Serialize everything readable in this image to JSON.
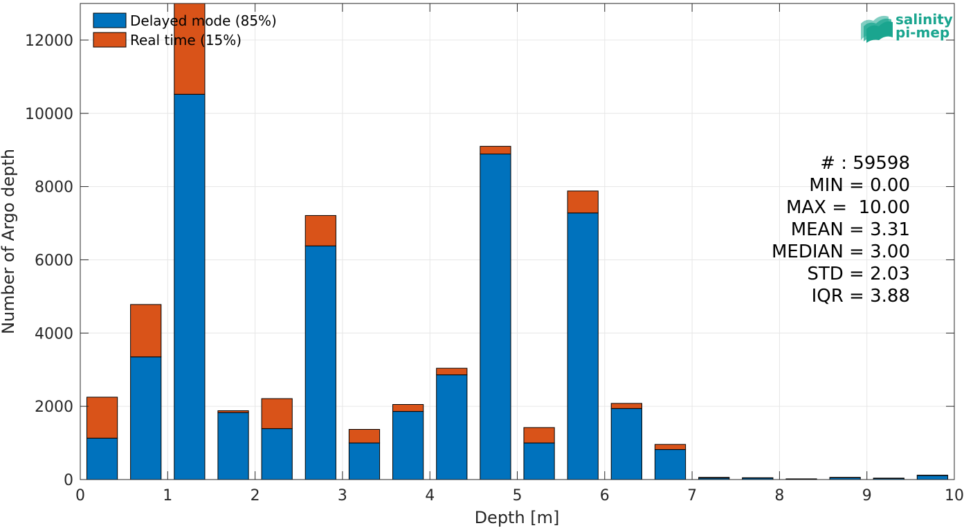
{
  "chart_data": {
    "type": "bar",
    "stacked": true,
    "xlabel": "Depth [m]",
    "ylabel": "Number of Argo depth",
    "xlim": [
      0,
      10
    ],
    "ylim": [
      0,
      13000
    ],
    "xticks": [
      0,
      1,
      2,
      3,
      4,
      5,
      6,
      7,
      8,
      9,
      10
    ],
    "yticks": [
      0,
      2000,
      4000,
      6000,
      8000,
      10000,
      12000
    ],
    "grid": true,
    "legend_position": "top-left",
    "bin_width": 0.5,
    "x": [
      0.25,
      0.75,
      1.25,
      1.75,
      2.25,
      2.75,
      3.25,
      3.75,
      4.25,
      4.75,
      5.25,
      5.75,
      6.25,
      6.75,
      7.25,
      7.75,
      8.25,
      8.75,
      9.25,
      9.75
    ],
    "series": [
      {
        "name": "Delayed mode (85%)",
        "color": "#0072bd",
        "values": [
          1130,
          3350,
          10520,
          1830,
          1390,
          6380,
          1000,
          1860,
          2860,
          8890,
          1000,
          7280,
          1940,
          820,
          40,
          40,
          10,
          50,
          30,
          110
        ]
      },
      {
        "name": "Real time (15%)",
        "color": "#d95319",
        "values": [
          1120,
          1430,
          2480,
          50,
          820,
          830,
          370,
          190,
          180,
          210,
          420,
          600,
          140,
          140,
          20,
          10,
          10,
          10,
          10,
          10
        ]
      }
    ],
    "stats": [
      "# : 59598",
      "MIN = 0.00",
      "MAX =  10.00",
      "MEAN = 3.31",
      "MEDIAN = 3.00",
      "STD = 2.03",
      "IQR = 3.88"
    ]
  },
  "logo": {
    "line1": "salinity",
    "line2": "pi-mep",
    "color": "#1aa58f"
  }
}
